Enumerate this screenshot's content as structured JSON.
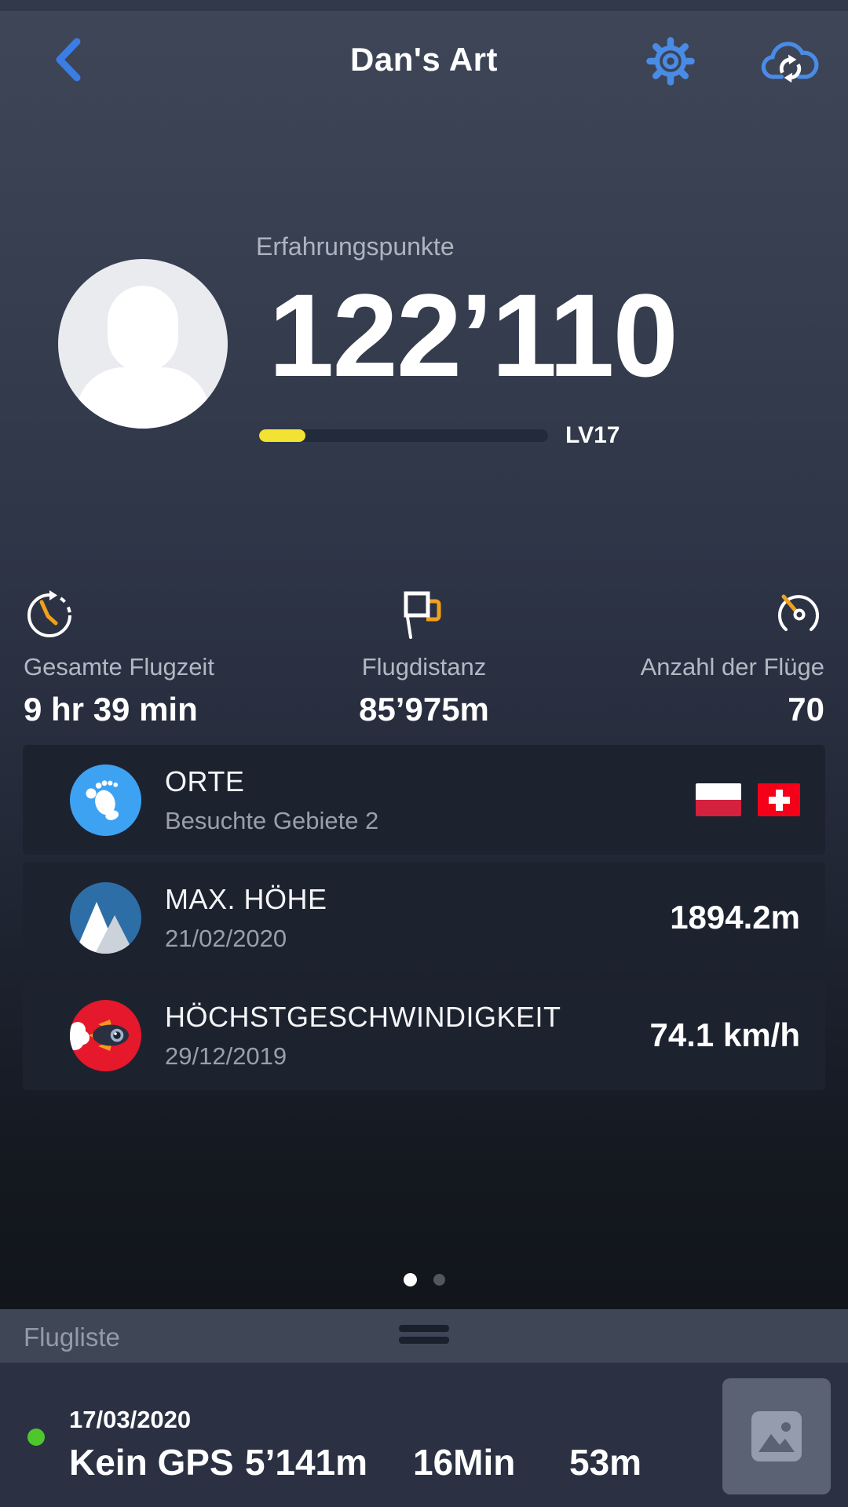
{
  "header": {
    "title": "Dan's Art"
  },
  "profile": {
    "xp_label": "Erfahrungspunkte",
    "xp_value": "122’110",
    "level": "LV17",
    "progress_percent": 16
  },
  "stats": {
    "items": [
      {
        "label": "Gesamte Flugzeit",
        "value": "9 hr 39 min",
        "icon": "stopwatch-icon"
      },
      {
        "label": "Flugdistanz",
        "value": "85’975m",
        "icon": "flags-icon"
      },
      {
        "label": "Anzahl der Flüge",
        "value": "70",
        "icon": "speedometer-icon"
      }
    ]
  },
  "cards": [
    {
      "title": "ORTE",
      "subtitle": "Besuchte Gebiete 2",
      "icon": "footprint-icon",
      "flags": [
        "poland",
        "switzerland"
      ]
    },
    {
      "title": "MAX. HÖHE",
      "subtitle": "21/02/2020",
      "value": "1894.2m",
      "icon": "mountain-icon"
    },
    {
      "title": "HÖCHSTGESCHWINDIGKEIT",
      "subtitle": "29/12/2019",
      "value": "74.1 km/h",
      "icon": "rocket-icon"
    }
  ],
  "pager": {
    "page_count": 2,
    "active_page": 1
  },
  "sheet": {
    "title": "Flugliste"
  },
  "flight": {
    "date": "17/03/2020",
    "gps": "Kein GPS",
    "distance": "5’141m",
    "duration": "16Min",
    "altitude": "53m",
    "status_icon": "green-dot",
    "thumbnail_icon": "image-placeholder"
  },
  "icons": {
    "back": "chevron-left",
    "settings": "gear-outline",
    "sync": "cloud-with-refresh-arrows"
  },
  "colors": {
    "accent_blue": "#4a8be6",
    "progress_yellow": "#f2e232",
    "icon_orange": "#f0a11c",
    "card_bg": "#1d222f",
    "sheet_bar_bg": "#3f4757",
    "flight_row_bg": "#2b3143",
    "places_badge_blue": "#3ea2f2",
    "altitude_badge_blue": "#2e6ea6",
    "speed_badge_red": "#e5182c",
    "poland_red": "#d4213d",
    "swiss_red": "#f50018",
    "gps_green": "#4fc62e"
  }
}
